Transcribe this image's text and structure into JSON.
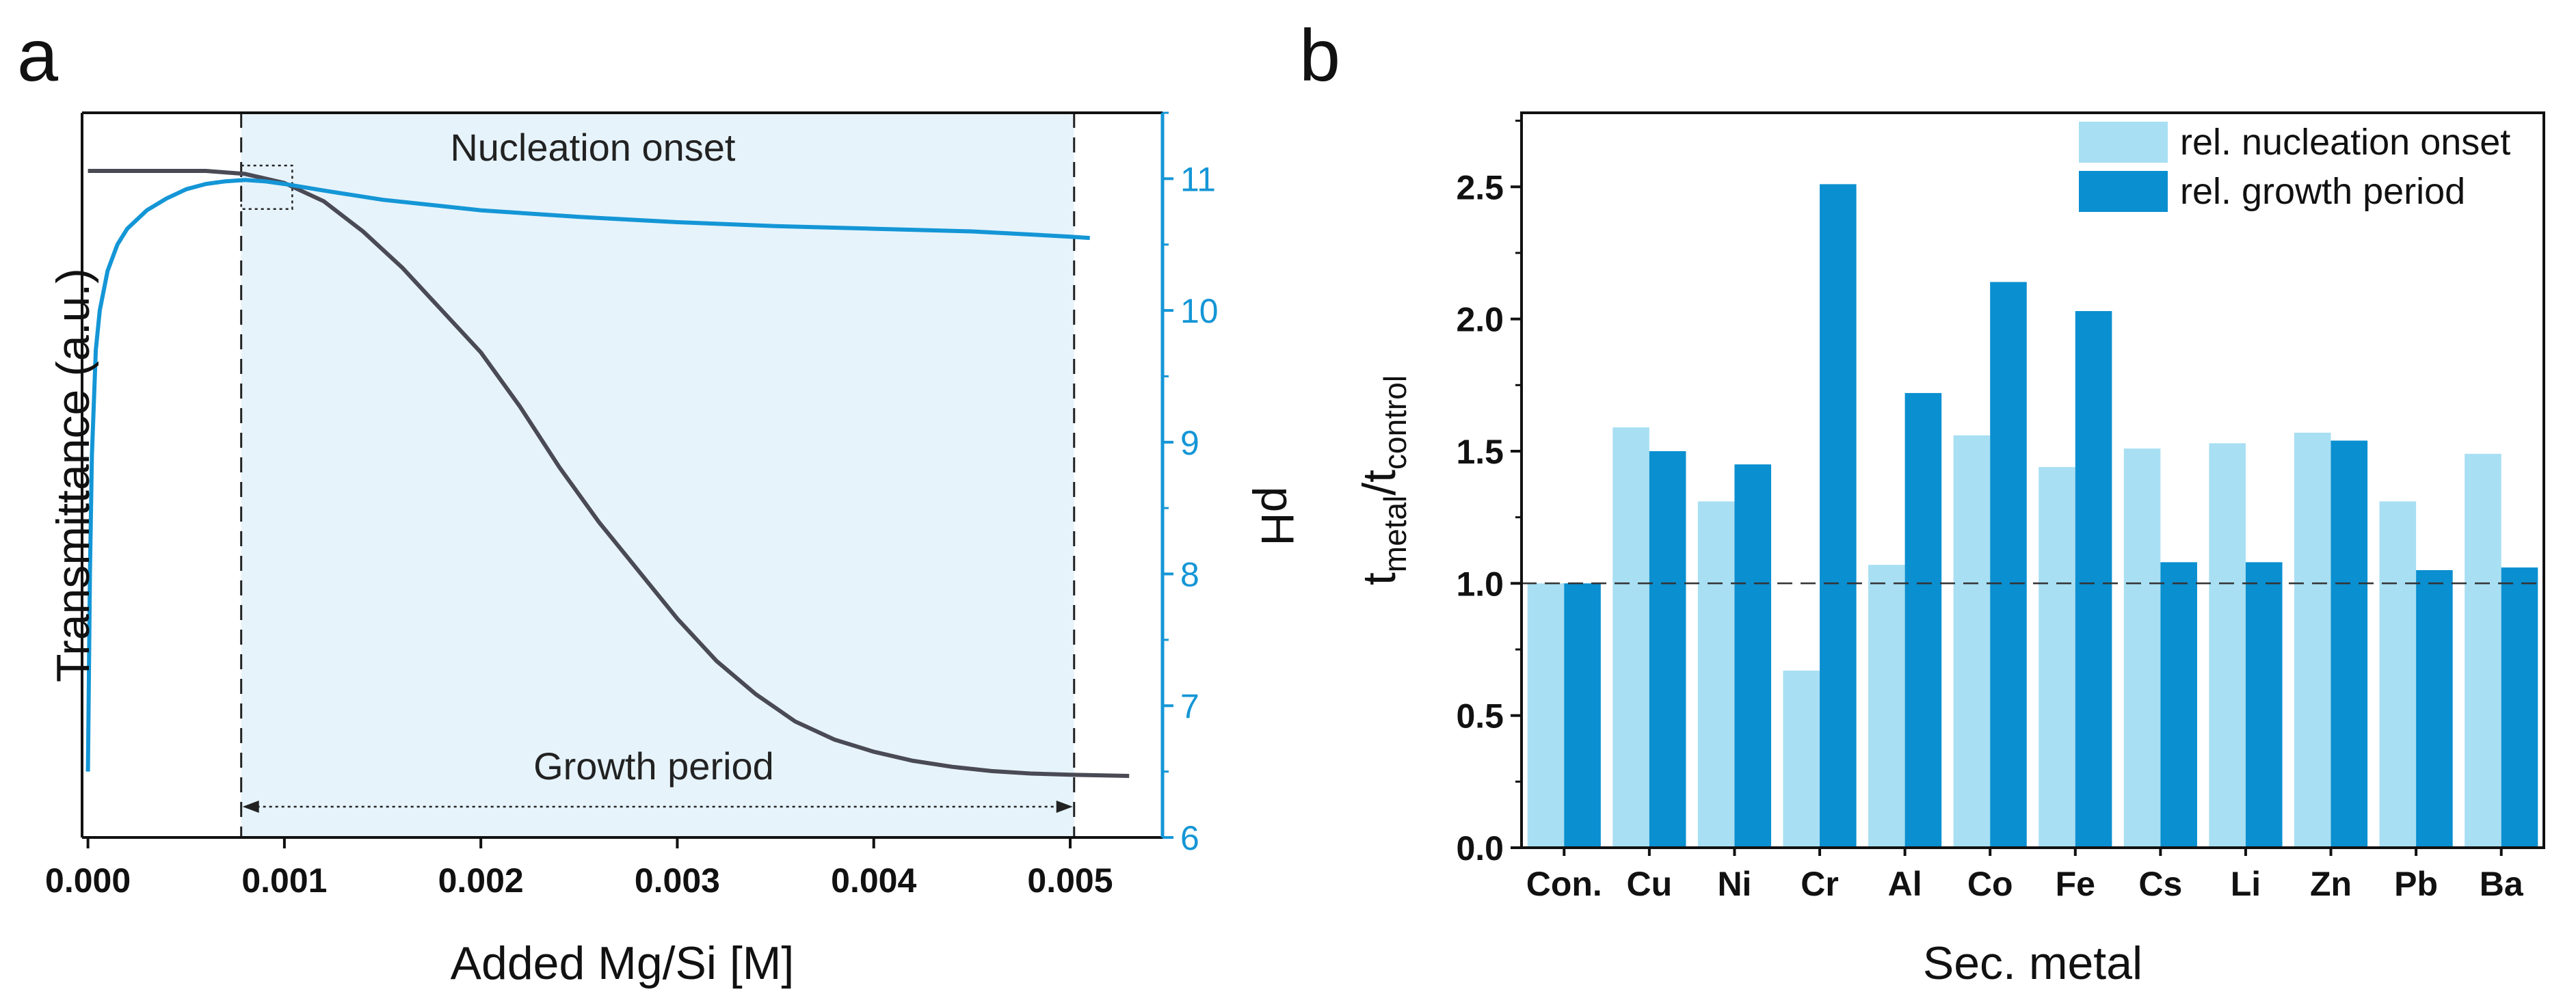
{
  "figure": {
    "panel_a_label": "a",
    "panel_b_label": "b"
  },
  "colors": {
    "transmittance": "#4a4a55",
    "ph": "#1496d6",
    "shade": "#e6f3fb",
    "nucleation_bar": "#a8dff3",
    "growth_bar": "#0a8fd0",
    "axis": "#111111"
  },
  "chart_data": [
    {
      "type": "line",
      "panel": "a",
      "xlabel": "Added Mg/Si [M]",
      "ylabel_left": "Transmittance (a.u.)",
      "ylabel_right": "pH",
      "xlim": [
        -3e-05,
        0.00547
      ],
      "x_ticks": [
        "0.000",
        "0.001",
        "0.002",
        "0.003",
        "0.004",
        "0.005"
      ],
      "x_tick_values": [
        0,
        0.001,
        0.002,
        0.003,
        0.004,
        0.005
      ],
      "y_right_lim": [
        6,
        11.5
      ],
      "y_right_ticks": [
        "6",
        "7",
        "8",
        "9",
        "10",
        "11"
      ],
      "y_right_tick_values": [
        6,
        7,
        8,
        9,
        10,
        11
      ],
      "left_axis_ticks_labeled": false,
      "shaded_region": [
        0.00078,
        0.00502
      ],
      "annotations": {
        "nucleation": "Nucleation onset",
        "growth": "Growth period"
      },
      "series": [
        {
          "name": "Transmittance",
          "axis": "left",
          "units": "a.u.",
          "x": [
            0.0,
            0.0002,
            0.0004,
            0.0006,
            0.0008,
            0.001,
            0.0012,
            0.0014,
            0.0016,
            0.0018,
            0.002,
            0.0022,
            0.0024,
            0.0026,
            0.0028,
            0.003,
            0.0032,
            0.0034,
            0.0036,
            0.0038,
            0.004,
            0.0042,
            0.0044,
            0.0046,
            0.0048,
            0.005,
            0.0053
          ],
          "y": [
            1.0,
            1.0,
            1.0,
            1.0,
            0.995,
            0.98,
            0.95,
            0.9,
            0.84,
            0.77,
            0.7,
            0.61,
            0.51,
            0.42,
            0.34,
            0.26,
            0.19,
            0.135,
            0.09,
            0.06,
            0.04,
            0.025,
            0.015,
            0.008,
            0.004,
            0.002,
            0.0
          ]
        },
        {
          "name": "pH",
          "axis": "right",
          "x": [
            0.0,
            1e-05,
            2e-05,
            4e-05,
            6e-05,
            0.0001,
            0.00015,
            0.0002,
            0.0003,
            0.0004,
            0.0005,
            0.0006,
            0.0007,
            0.0008,
            0.0009,
            0.001,
            0.0012,
            0.0015,
            0.002,
            0.0025,
            0.003,
            0.0035,
            0.004,
            0.0045,
            0.005,
            0.0051
          ],
          "y": [
            6.5,
            8.0,
            8.9,
            9.7,
            10.0,
            10.3,
            10.5,
            10.62,
            10.76,
            10.85,
            10.92,
            10.96,
            10.98,
            10.99,
            10.98,
            10.96,
            10.91,
            10.84,
            10.76,
            10.71,
            10.67,
            10.64,
            10.62,
            10.6,
            10.56,
            10.55
          ]
        }
      ]
    },
    {
      "type": "bar",
      "panel": "b",
      "xlabel": "Sec. metal",
      "ylabel": "t_metal/t_control",
      "ylabel_parts": {
        "t1": "t",
        "sub1": "metal",
        "slash": "/t",
        "sub2": "control"
      },
      "ylim": [
        0,
        2.78
      ],
      "y_ticks": [
        "0.0",
        "0.5",
        "1.0",
        "1.5",
        "2.0",
        "2.5"
      ],
      "y_tick_values": [
        0,
        0.5,
        1.0,
        1.5,
        2.0,
        2.5
      ],
      "reference_line": 1.0,
      "legend_position": "top-right",
      "categories": [
        "Con.",
        "Cu",
        "Ni",
        "Cr",
        "Al",
        "Co",
        "Fe",
        "Cs",
        "Li",
        "Zn",
        "Pb",
        "Ba"
      ],
      "series": [
        {
          "name": "rel. nucleation onset",
          "values": [
            1.0,
            1.59,
            1.31,
            0.67,
            1.07,
            1.56,
            1.44,
            1.51,
            1.53,
            1.57,
            1.31,
            1.49
          ]
        },
        {
          "name": "rel. growth period",
          "values": [
            1.0,
            1.5,
            1.45,
            2.51,
            1.72,
            2.14,
            2.03,
            1.08,
            1.08,
            1.54,
            1.05,
            1.06
          ]
        }
      ]
    }
  ]
}
